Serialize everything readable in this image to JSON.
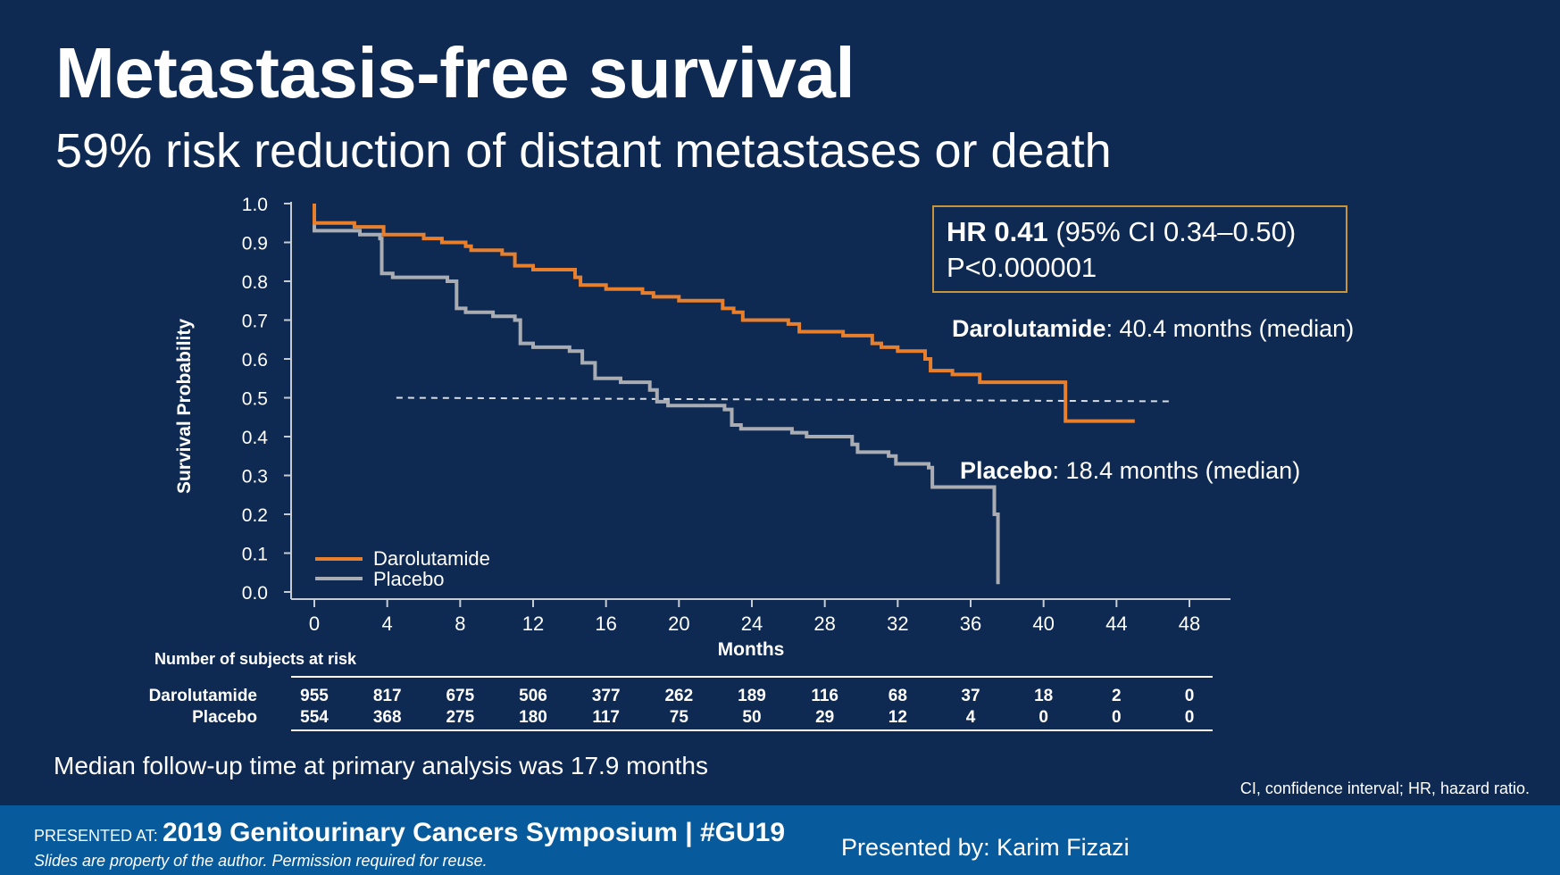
{
  "slide": {
    "title": "Metastasis-free survival",
    "subtitle": "59% risk reduction of distant metastases or death"
  },
  "annotation": {
    "hr_bold": "HR 0.41",
    "hr_rest": " (95% CI 0.34–0.50)",
    "p_value": "P<0.000001",
    "daro_bold": "Darolutamide",
    "daro_rest": ": 40.4 months (median)",
    "placebo_bold": "Placebo",
    "placebo_rest": ": 18.4 months (median)"
  },
  "risk_table": {
    "title": "Number of subjects at risk",
    "rows": [
      {
        "label": "Darolutamide",
        "values": [
          955,
          817,
          675,
          506,
          377,
          262,
          189,
          116,
          68,
          37,
          18,
          2,
          0
        ]
      },
      {
        "label": "Placebo",
        "values": [
          554,
          368,
          275,
          180,
          117,
          75,
          50,
          29,
          12,
          4,
          0,
          0,
          0
        ]
      }
    ]
  },
  "footnotes": {
    "followup": "Median follow-up time at primary analysis was 17.9 months",
    "abbreviations": "CI, confidence interval; HR, hazard ratio."
  },
  "footer": {
    "presented_at": "PRESENTED AT:",
    "event": "2019 Genitourinary Cancers Symposium  |  #GU19",
    "disclaimer": "Slides are property of the author. Permission required for reuse.",
    "presenter": "Presented by: Karim Fizazi"
  },
  "colors": {
    "background": "#0f2a52",
    "footer": "#075b9c",
    "darolutamide": "#e87f2c",
    "placebo": "#a9adb3",
    "annotation_border": "#c8943a"
  },
  "chart_data": {
    "type": "line",
    "xlabel": "Months",
    "ylabel": "Survival Probability",
    "xlim": [
      0,
      48
    ],
    "ylim": [
      0,
      1
    ],
    "x_ticks": [
      "0",
      "4",
      "8",
      "12",
      "16",
      "20",
      "24",
      "28",
      "32",
      "36",
      "40",
      "44",
      "48"
    ],
    "y_ticks": [
      "0.0",
      "0.1",
      "0.2",
      "0.3",
      "0.4",
      "0.5",
      "0.6",
      "0.7",
      "0.8",
      "0.9",
      "1.0"
    ],
    "legend": {
      "position": "bottom-left",
      "entries": [
        "Darolutamide",
        "Placebo"
      ]
    },
    "reference_line": {
      "y": 0.5,
      "x_from": 4.5,
      "x_to": 48,
      "style": "dashed"
    },
    "series": [
      {
        "name": "Darolutamide",
        "points": [
          [
            0,
            1.0
          ],
          [
            0,
            0.95
          ],
          [
            2.2,
            0.94
          ],
          [
            3.8,
            0.93
          ],
          [
            3.8,
            0.92
          ],
          [
            6,
            0.91
          ],
          [
            7,
            0.9
          ],
          [
            8.3,
            0.89
          ],
          [
            8.6,
            0.88
          ],
          [
            10.3,
            0.87
          ],
          [
            11,
            0.84
          ],
          [
            12,
            0.83
          ],
          [
            14.3,
            0.81
          ],
          [
            14.6,
            0.79
          ],
          [
            16,
            0.78
          ],
          [
            18,
            0.77
          ],
          [
            18.6,
            0.76
          ],
          [
            20,
            0.75
          ],
          [
            22.4,
            0.73
          ],
          [
            23,
            0.72
          ],
          [
            23.5,
            0.7
          ],
          [
            26,
            0.69
          ],
          [
            26.6,
            0.67
          ],
          [
            29,
            0.66
          ],
          [
            30.6,
            0.64
          ],
          [
            31.1,
            0.63
          ],
          [
            32,
            0.62
          ],
          [
            33.5,
            0.6
          ],
          [
            33.8,
            0.57
          ],
          [
            35,
            0.56
          ],
          [
            36.5,
            0.54
          ],
          [
            38.5,
            0.54
          ],
          [
            41,
            0.54
          ],
          [
            41.2,
            0.44
          ],
          [
            45,
            0.44
          ]
        ]
      },
      {
        "name": "Placebo",
        "points": [
          [
            0,
            1.0
          ],
          [
            0,
            0.93
          ],
          [
            2.5,
            0.92
          ],
          [
            3.6,
            0.91
          ],
          [
            3.7,
            0.82
          ],
          [
            4.3,
            0.81
          ],
          [
            7.3,
            0.8
          ],
          [
            7.8,
            0.73
          ],
          [
            8.3,
            0.72
          ],
          [
            9.8,
            0.71
          ],
          [
            11,
            0.7
          ],
          [
            11.3,
            0.64
          ],
          [
            12,
            0.63
          ],
          [
            14,
            0.62
          ],
          [
            14.7,
            0.59
          ],
          [
            15.4,
            0.55
          ],
          [
            16.8,
            0.54
          ],
          [
            18.4,
            0.52
          ],
          [
            18.8,
            0.49
          ],
          [
            19.4,
            0.48
          ],
          [
            22.5,
            0.47
          ],
          [
            22.9,
            0.43
          ],
          [
            23.4,
            0.42
          ],
          [
            26.2,
            0.41
          ],
          [
            27,
            0.4
          ],
          [
            29.5,
            0.38
          ],
          [
            29.8,
            0.36
          ],
          [
            31.5,
            0.35
          ],
          [
            31.9,
            0.33
          ],
          [
            33.7,
            0.32
          ],
          [
            33.9,
            0.27
          ],
          [
            37.2,
            0.27
          ],
          [
            37.3,
            0.2
          ],
          [
            37.5,
            0.02
          ]
        ]
      }
    ]
  }
}
